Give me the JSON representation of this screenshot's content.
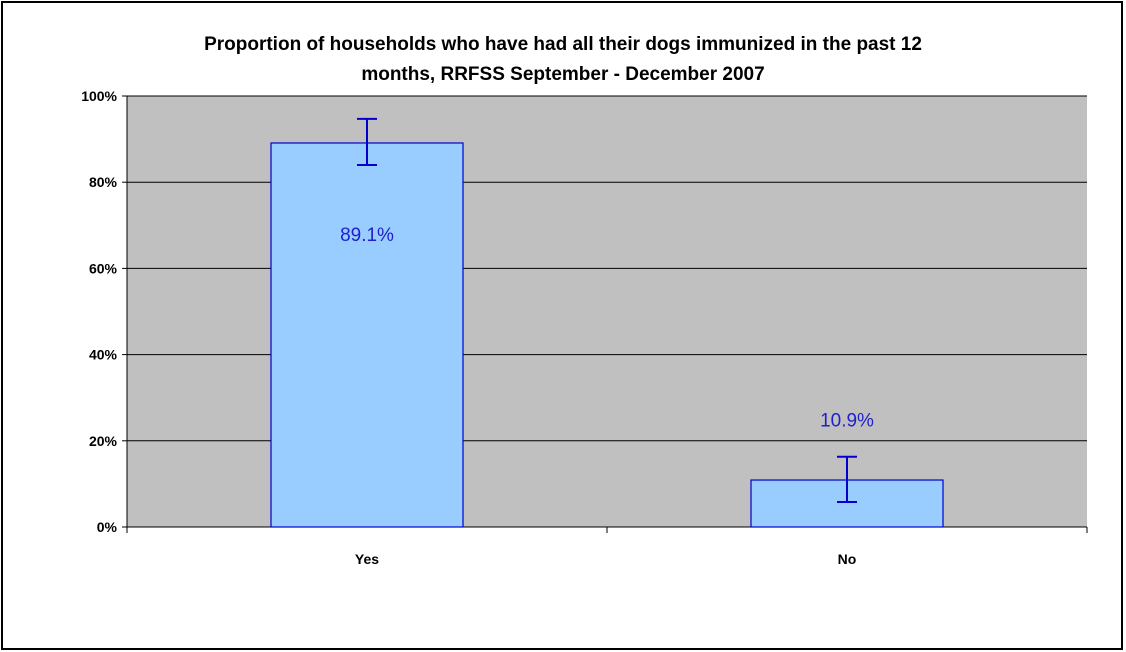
{
  "chart_data": {
    "type": "bar",
    "title_lines": [
      "Proportion of households who have had all their dogs immunized in the past 12",
      "months, RRFSS September - December 2007"
    ],
    "categories": [
      "Yes",
      "No"
    ],
    "values": [
      89.1,
      10.9
    ],
    "data_labels": [
      "89.1%",
      "10.9%"
    ],
    "error_bars": [
      {
        "low": 84.0,
        "high": 94.7
      },
      {
        "low": 5.8,
        "high": 16.3
      }
    ],
    "y_ticks": [
      0,
      20,
      40,
      60,
      80,
      100
    ],
    "y_tick_labels": [
      "0%",
      "20%",
      "40%",
      "60%",
      "80%",
      "100%"
    ],
    "ylim": [
      0,
      100
    ],
    "grid": true,
    "colors": {
      "plot_bg": "#c0c0c0",
      "bar_fill": "#99ccff",
      "bar_stroke": "#0000cc",
      "error_bar": "#0000cc",
      "label": "#1f1fcc",
      "grid": "#000000"
    }
  }
}
